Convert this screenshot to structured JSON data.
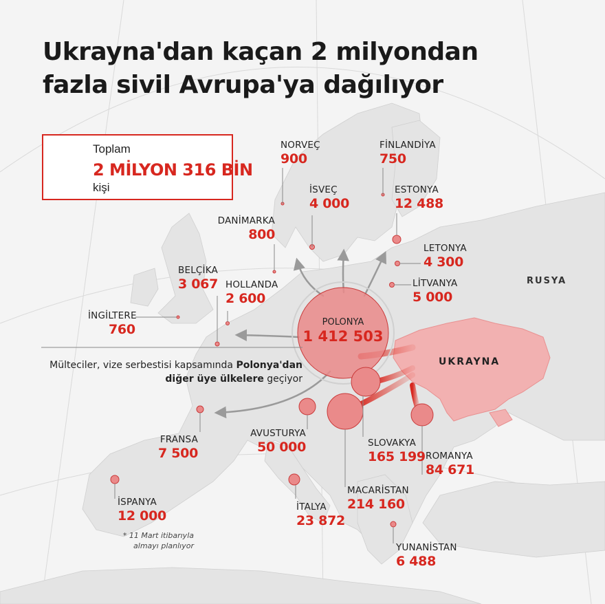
{
  "title": {
    "line1": "Ukrayna'dan kaçan 2 milyondan",
    "line2": "fazla sivil Avrupa'ya dağılıyor"
  },
  "total": {
    "label": "Toplam",
    "value": "2 MİLYON 316 BİN",
    "unit": "kişi"
  },
  "colors": {
    "accent": "#d7271f",
    "bubble": "#ea8a8a",
    "bubble_stroke": "#c93a3a",
    "ukraine_fill": "#f2b1b1",
    "land": "#e6e6e6",
    "sea": "#f4f4f4"
  },
  "countries": {
    "norvec": {
      "name": "NORVEÇ",
      "value": "900"
    },
    "finlandiya": {
      "name": "FİNLANDİYA",
      "value": "750"
    },
    "isvec": {
      "name": "İSVEÇ",
      "value": "4 000"
    },
    "estonya": {
      "name": "ESTONYA",
      "value": "12 488"
    },
    "danimarka": {
      "name": "DANİMARKA",
      "value": "800"
    },
    "letonya": {
      "name": "LETONYA",
      "value": "4 300"
    },
    "belcika": {
      "name": "BELÇİKA",
      "value": "3 067"
    },
    "hollanda": {
      "name": "HOLLANDA",
      "value": "2 600"
    },
    "litvanya": {
      "name": "LİTVANYA",
      "value": "5 000"
    },
    "ingiltere": {
      "name": "İNGİLTERE",
      "value": "760"
    },
    "polonya": {
      "name": "POLONYA",
      "value": "1 412 503"
    },
    "fransa": {
      "name": "FRANSA",
      "value": "7 500"
    },
    "avusturya": {
      "name": "AVUSTURYA",
      "value": "50 000"
    },
    "slovakya": {
      "name": "SLOVAKYA",
      "value": "165 199"
    },
    "romanya": {
      "name": "ROMANYA",
      "value": "84 671"
    },
    "ispanya": {
      "name": "İSPANYA",
      "value": "12 000"
    },
    "italya": {
      "name": "İTALYA",
      "value": "23 872"
    },
    "macaristan": {
      "name": "MACARİSTAN",
      "value": "214 160"
    },
    "yunanistan": {
      "name": "YUNANİSTAN",
      "value": "6 488"
    }
  },
  "map_labels": {
    "rusya": "RUSYA",
    "ukrayna": "UKRAYNA"
  },
  "note": {
    "part1": "Mülteciler, vize serbestisi kapsamında ",
    "bold1": "Polonya'dan",
    "bold2": "diğer üye ülkelere",
    "part2": " geçiyor"
  },
  "footnote": {
    "line1": "* 11 Mart itibarıyla",
    "line2": "almayı planlıyor"
  }
}
